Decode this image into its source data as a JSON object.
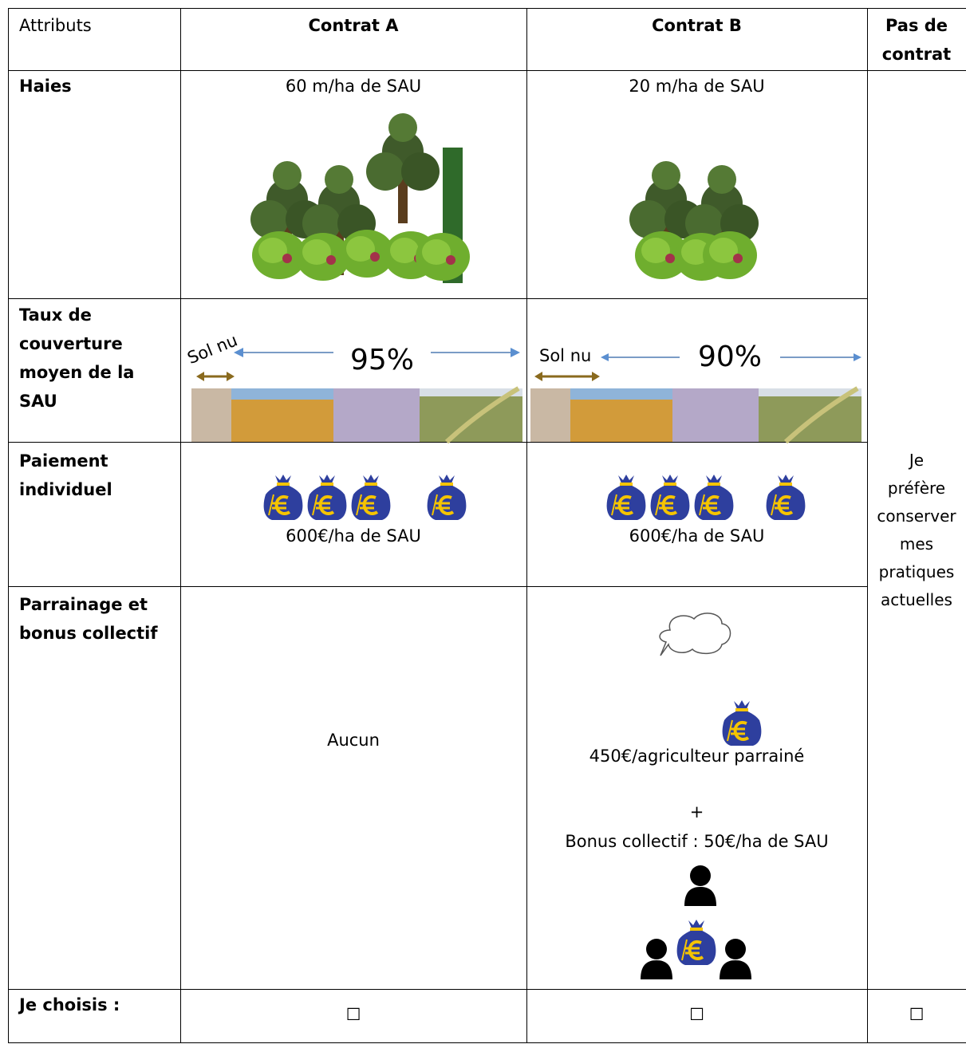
{
  "table": {
    "header": [
      "Attributs",
      "Contrat A",
      "Contrat B",
      "Pas de contrat"
    ],
    "rows": [
      {
        "label": "Haies",
        "contract_a": "60 m/ha de SAU",
        "contract_b": "20 m/ha de SAU"
      },
      {
        "label": "Taux de couverture moyen de la SAU",
        "contract_a": {
          "bare_soil": "Sol nu",
          "rate": "95%"
        },
        "contract_b": {
          "bare_soil": "Sol nu",
          "rate": "90%"
        }
      },
      {
        "label": "Paiement individuel",
        "contract_a": "600€/ha de SAU",
        "contract_b": "600€/ha de SAU"
      },
      {
        "label": "Parrainage et bonus collectif",
        "contract_a": "Aucun",
        "contract_b": {
          "sponsorship": "450€/agriculteur parrainé",
          "plus": "+",
          "collective_bonus": "Bonus collectif : 50€/ha de SAU"
        }
      }
    ],
    "no_contract": "Je préfère conserver mes pratiques actuelles",
    "choice": {
      "label": "Je choisis :",
      "options": [
        "☐",
        "☐",
        "☐"
      ]
    }
  }
}
